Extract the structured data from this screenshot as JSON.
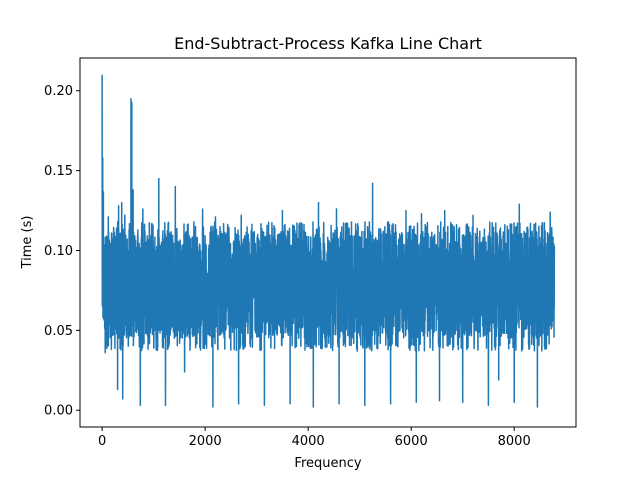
{
  "chart_data": {
    "type": "line",
    "title": "End-Subtract-Process Kafka Line Chart",
    "xlabel": "Frequency",
    "ylabel": "Time (s)",
    "xlim": [
      -430,
      9200
    ],
    "ylim": [
      -0.0105,
      0.2205
    ],
    "xticks": [
      0,
      2000,
      4000,
      6000,
      8000
    ],
    "xtick_labels": [
      "0",
      "2000",
      "4000",
      "6000",
      "8000"
    ],
    "yticks": [
      0.0,
      0.05,
      0.1,
      0.15,
      0.2
    ],
    "ytick_labels": [
      "0.00",
      "0.05",
      "0.10",
      "0.15",
      "0.20"
    ],
    "grid": false,
    "series": [
      {
        "color": "#1f77b4",
        "n_points": 8780,
        "band_low": 0.045,
        "band_high": 0.112,
        "high_spikes": [
          {
            "x": 0,
            "y": 0.21
          },
          {
            "x": 10,
            "y": 0.158
          },
          {
            "x": 25,
            "y": 0.137
          },
          {
            "x": 60,
            "y": 0.128
          },
          {
            "x": 120,
            "y": 0.121
          },
          {
            "x": 320,
            "y": 0.128
          },
          {
            "x": 380,
            "y": 0.13
          },
          {
            "x": 440,
            "y": 0.122
          },
          {
            "x": 560,
            "y": 0.195
          },
          {
            "x": 575,
            "y": 0.193
          },
          {
            "x": 600,
            "y": 0.138
          },
          {
            "x": 790,
            "y": 0.126
          },
          {
            "x": 1100,
            "y": 0.145
          },
          {
            "x": 1420,
            "y": 0.14
          },
          {
            "x": 1950,
            "y": 0.126
          },
          {
            "x": 2200,
            "y": 0.121
          },
          {
            "x": 2700,
            "y": 0.122
          },
          {
            "x": 3500,
            "y": 0.125
          },
          {
            "x": 4200,
            "y": 0.13
          },
          {
            "x": 4550,
            "y": 0.126
          },
          {
            "x": 5250,
            "y": 0.142
          },
          {
            "x": 5900,
            "y": 0.125
          },
          {
            "x": 6200,
            "y": 0.123
          },
          {
            "x": 6650,
            "y": 0.125
          },
          {
            "x": 7200,
            "y": 0.122
          },
          {
            "x": 8100,
            "y": 0.129
          },
          {
            "x": 8700,
            "y": 0.124
          }
        ],
        "low_spikes": [
          {
            "x": 60,
            "y": 0.036
          },
          {
            "x": 180,
            "y": 0.038
          },
          {
            "x": 300,
            "y": 0.013
          },
          {
            "x": 400,
            "y": 0.007
          },
          {
            "x": 740,
            "y": 0.003
          },
          {
            "x": 1230,
            "y": 0.003
          },
          {
            "x": 1600,
            "y": 0.024
          },
          {
            "x": 2150,
            "y": 0.002
          },
          {
            "x": 2650,
            "y": 0.004
          },
          {
            "x": 3150,
            "y": 0.003
          },
          {
            "x": 3650,
            "y": 0.004
          },
          {
            "x": 4100,
            "y": 0.002
          },
          {
            "x": 4600,
            "y": 0.004
          },
          {
            "x": 5100,
            "y": 0.003
          },
          {
            "x": 5600,
            "y": 0.004
          },
          {
            "x": 6100,
            "y": 0.005
          },
          {
            "x": 6550,
            "y": 0.006
          },
          {
            "x": 7000,
            "y": 0.005
          },
          {
            "x": 7500,
            "y": 0.003
          },
          {
            "x": 7700,
            "y": 0.019
          },
          {
            "x": 8000,
            "y": 0.005
          },
          {
            "x": 8450,
            "y": 0.002
          }
        ]
      }
    ]
  }
}
